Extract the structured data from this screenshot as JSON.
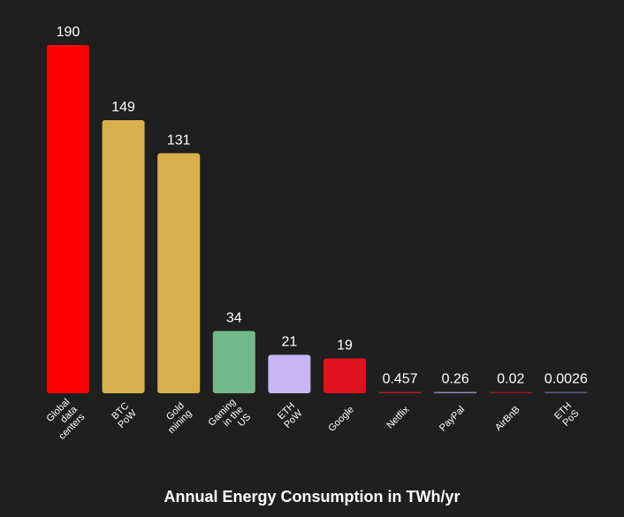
{
  "chart_data": {
    "type": "bar",
    "title": "Annual Energy Consumption in TWh/yr",
    "categories": [
      [
        "Global",
        "data",
        "centers"
      ],
      [
        "BTC",
        "PoW"
      ],
      [
        "Gold",
        "mining"
      ],
      [
        "Gaming",
        "in the",
        "US"
      ],
      [
        "ETH",
        "PoW"
      ],
      [
        "Google"
      ],
      [
        "Netflix"
      ],
      [
        "PayPal"
      ],
      [
        "AirBnB"
      ],
      [
        "ETH",
        "PoS"
      ]
    ],
    "values": [
      190,
      149,
      131,
      34,
      21,
      19,
      0.457,
      0.26,
      0.02,
      0.0026
    ],
    "value_labels": [
      "190",
      "149",
      "131",
      "34",
      "21",
      "19",
      "0.457",
      "0.26",
      "0.02",
      "0.0026"
    ],
    "colors": [
      "#ff0000",
      "#d8b04e",
      "#d8b04e",
      "#72b98a",
      "#c6b6f5",
      "#e3101d",
      "#b41a1a",
      "#8b86b8",
      "#9a1818",
      "#5b5e8a"
    ],
    "ylim": [
      0,
      190
    ],
    "grid": false,
    "legend": "none"
  }
}
